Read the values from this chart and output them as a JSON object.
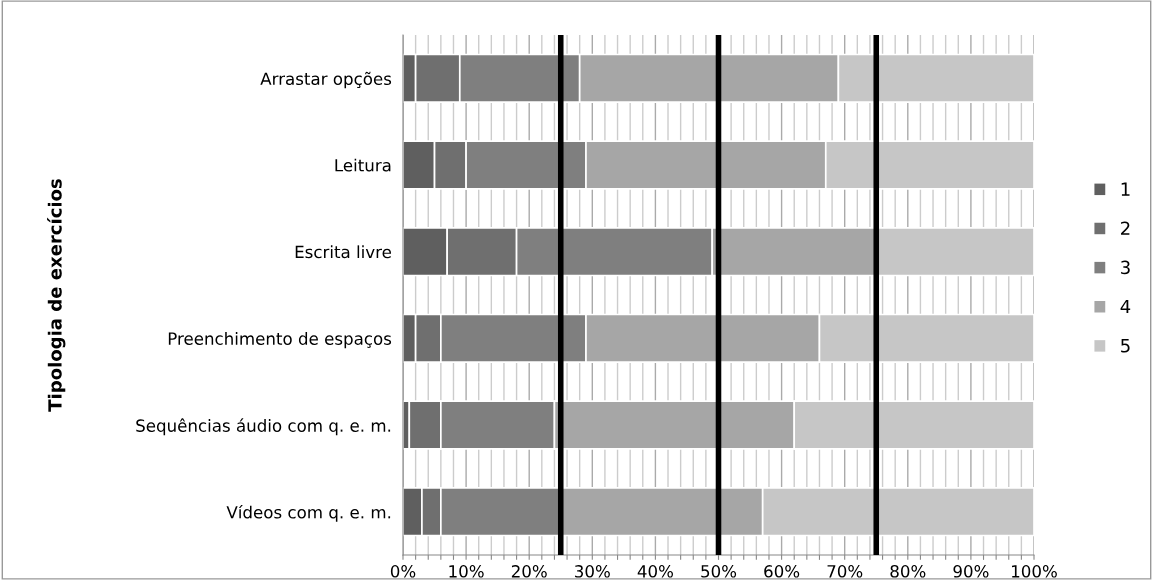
{
  "chart_data": {
    "type": "bar",
    "orientation": "horizontal",
    "stacked": true,
    "ylabel": "Tipologia de exercícios",
    "categories": [
      "Arrastar opções",
      "Leitura",
      "Escrita livre",
      "Preenchimento de espaços",
      "Sequências áudio com q. e. m.",
      "Vídeos com q. e. m."
    ],
    "series": [
      {
        "name": "1",
        "color": "#5f5f5f",
        "values": [
          2,
          5,
          7,
          2,
          1,
          3
        ]
      },
      {
        "name": "2",
        "color": "#6f6f6f",
        "values": [
          7,
          5,
          11,
          4,
          5,
          3
        ]
      },
      {
        "name": "3",
        "color": "#7f7f7f",
        "values": [
          19,
          19,
          31,
          23,
          18,
          19
        ]
      },
      {
        "name": "4",
        "color": "#a6a6a6",
        "values": [
          41,
          38,
          26,
          37,
          38,
          32
        ]
      },
      {
        "name": "5",
        "color": "#c6c6c6",
        "values": [
          31,
          33,
          25,
          34,
          38,
          43
        ]
      }
    ],
    "xlim": [
      0,
      100
    ],
    "xticks": [
      {
        "value": 0,
        "label": "0%"
      },
      {
        "value": 2,
        "label": null
      },
      {
        "value": 4,
        "label": null
      },
      {
        "value": 6,
        "label": null
      },
      {
        "value": 8,
        "label": null
      },
      {
        "value": 10,
        "label": "10%"
      },
      {
        "value": 12,
        "label": null
      },
      {
        "value": 14,
        "label": null
      },
      {
        "value": 16,
        "label": null
      },
      {
        "value": 18,
        "label": null
      },
      {
        "value": 20,
        "label": "20%"
      },
      {
        "value": 22,
        "label": null
      },
      {
        "value": 24,
        "label": null
      },
      {
        "value": 26,
        "label": null
      },
      {
        "value": 28,
        "label": null
      },
      {
        "value": 30,
        "label": "30%"
      },
      {
        "value": 32,
        "label": null
      },
      {
        "value": 34,
        "label": null
      },
      {
        "value": 36,
        "label": null
      },
      {
        "value": 38,
        "label": null
      },
      {
        "value": 40,
        "label": "40%"
      },
      {
        "value": 42,
        "label": null
      },
      {
        "value": 44,
        "label": null
      },
      {
        "value": 46,
        "label": null
      },
      {
        "value": 48,
        "label": null
      },
      {
        "value": 50,
        "label": "50%"
      },
      {
        "value": 52,
        "label": null
      },
      {
        "value": 54,
        "label": null
      },
      {
        "value": 56,
        "label": null
      },
      {
        "value": 58,
        "label": null
      },
      {
        "value": 60,
        "label": "60%"
      },
      {
        "value": 62,
        "label": null
      },
      {
        "value": 64,
        "label": null
      },
      {
        "value": 66,
        "label": null
      },
      {
        "value": 68,
        "label": null
      },
      {
        "value": 70,
        "label": "70%"
      },
      {
        "value": 72,
        "label": null
      },
      {
        "value": 74,
        "label": null
      },
      {
        "value": 76,
        "label": null
      },
      {
        "value": 78,
        "label": null
      },
      {
        "value": 80,
        "label": "80%"
      },
      {
        "value": 82,
        "label": null
      },
      {
        "value": 84,
        "label": null
      },
      {
        "value": 86,
        "label": null
      },
      {
        "value": 88,
        "label": null
      },
      {
        "value": 90,
        "label": "90%"
      },
      {
        "value": 92,
        "label": null
      },
      {
        "value": 94,
        "label": null
      },
      {
        "value": 96,
        "label": null
      },
      {
        "value": 98,
        "label": null
      },
      {
        "value": 100,
        "label": "100%"
      }
    ],
    "ref_lines": [
      {
        "axis": "x",
        "value": 25,
        "color": "#000000"
      },
      {
        "axis": "x",
        "value": 50,
        "color": "#000000"
      },
      {
        "axis": "x",
        "value": 75,
        "color": "#000000"
      }
    ],
    "grid": "x",
    "legend": "right"
  }
}
